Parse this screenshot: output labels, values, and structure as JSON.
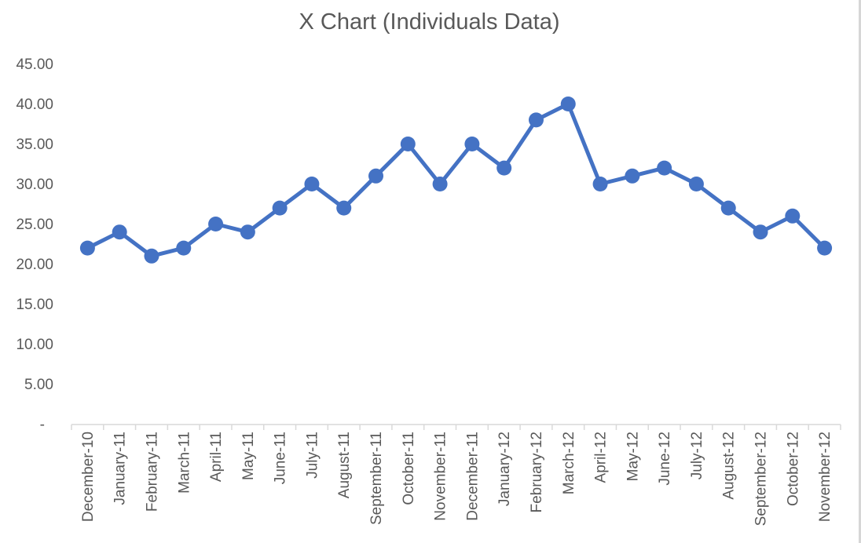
{
  "chart_data": {
    "type": "line",
    "title": "X Chart (Individuals Data)",
    "categories": [
      "December-10",
      "January-11",
      "February-11",
      "March-11",
      "April-11",
      "May-11",
      "June-11",
      "July-11",
      "August-11",
      "September-11",
      "October-11",
      "November-11",
      "December-11",
      "January-12",
      "February-12",
      "March-12",
      "April-12",
      "May-12",
      "June-12",
      "July-12",
      "August-12",
      "September-12",
      "October-12",
      "November-12"
    ],
    "values": [
      22,
      24,
      21,
      22,
      25,
      24,
      27,
      30,
      27,
      31,
      35,
      30,
      35,
      32,
      38,
      40,
      30,
      31,
      32,
      30,
      27,
      24,
      26,
      22
    ],
    "xlabel": "",
    "ylabel": "",
    "ylim": [
      0,
      45
    ],
    "y_ticks": [
      {
        "value": 45,
        "label": "45.00"
      },
      {
        "value": 40,
        "label": "40.00"
      },
      {
        "value": 35,
        "label": "35.00"
      },
      {
        "value": 30,
        "label": "30.00"
      },
      {
        "value": 25,
        "label": "25.00"
      },
      {
        "value": 20,
        "label": "20.00"
      },
      {
        "value": 15,
        "label": "15.00"
      },
      {
        "value": 10,
        "label": "10.00"
      },
      {
        "value": 5,
        "label": "5.00"
      },
      {
        "value": 0,
        "label": "-"
      }
    ],
    "grid": false,
    "legend": false,
    "marker": "circle",
    "colors": {
      "series": "#4472C4",
      "axis_line": "#D9D9D9",
      "tick_mark": "#D9D9D9",
      "text": "#595959",
      "title_text": "#595959",
      "background": "#FFFFFF"
    }
  }
}
